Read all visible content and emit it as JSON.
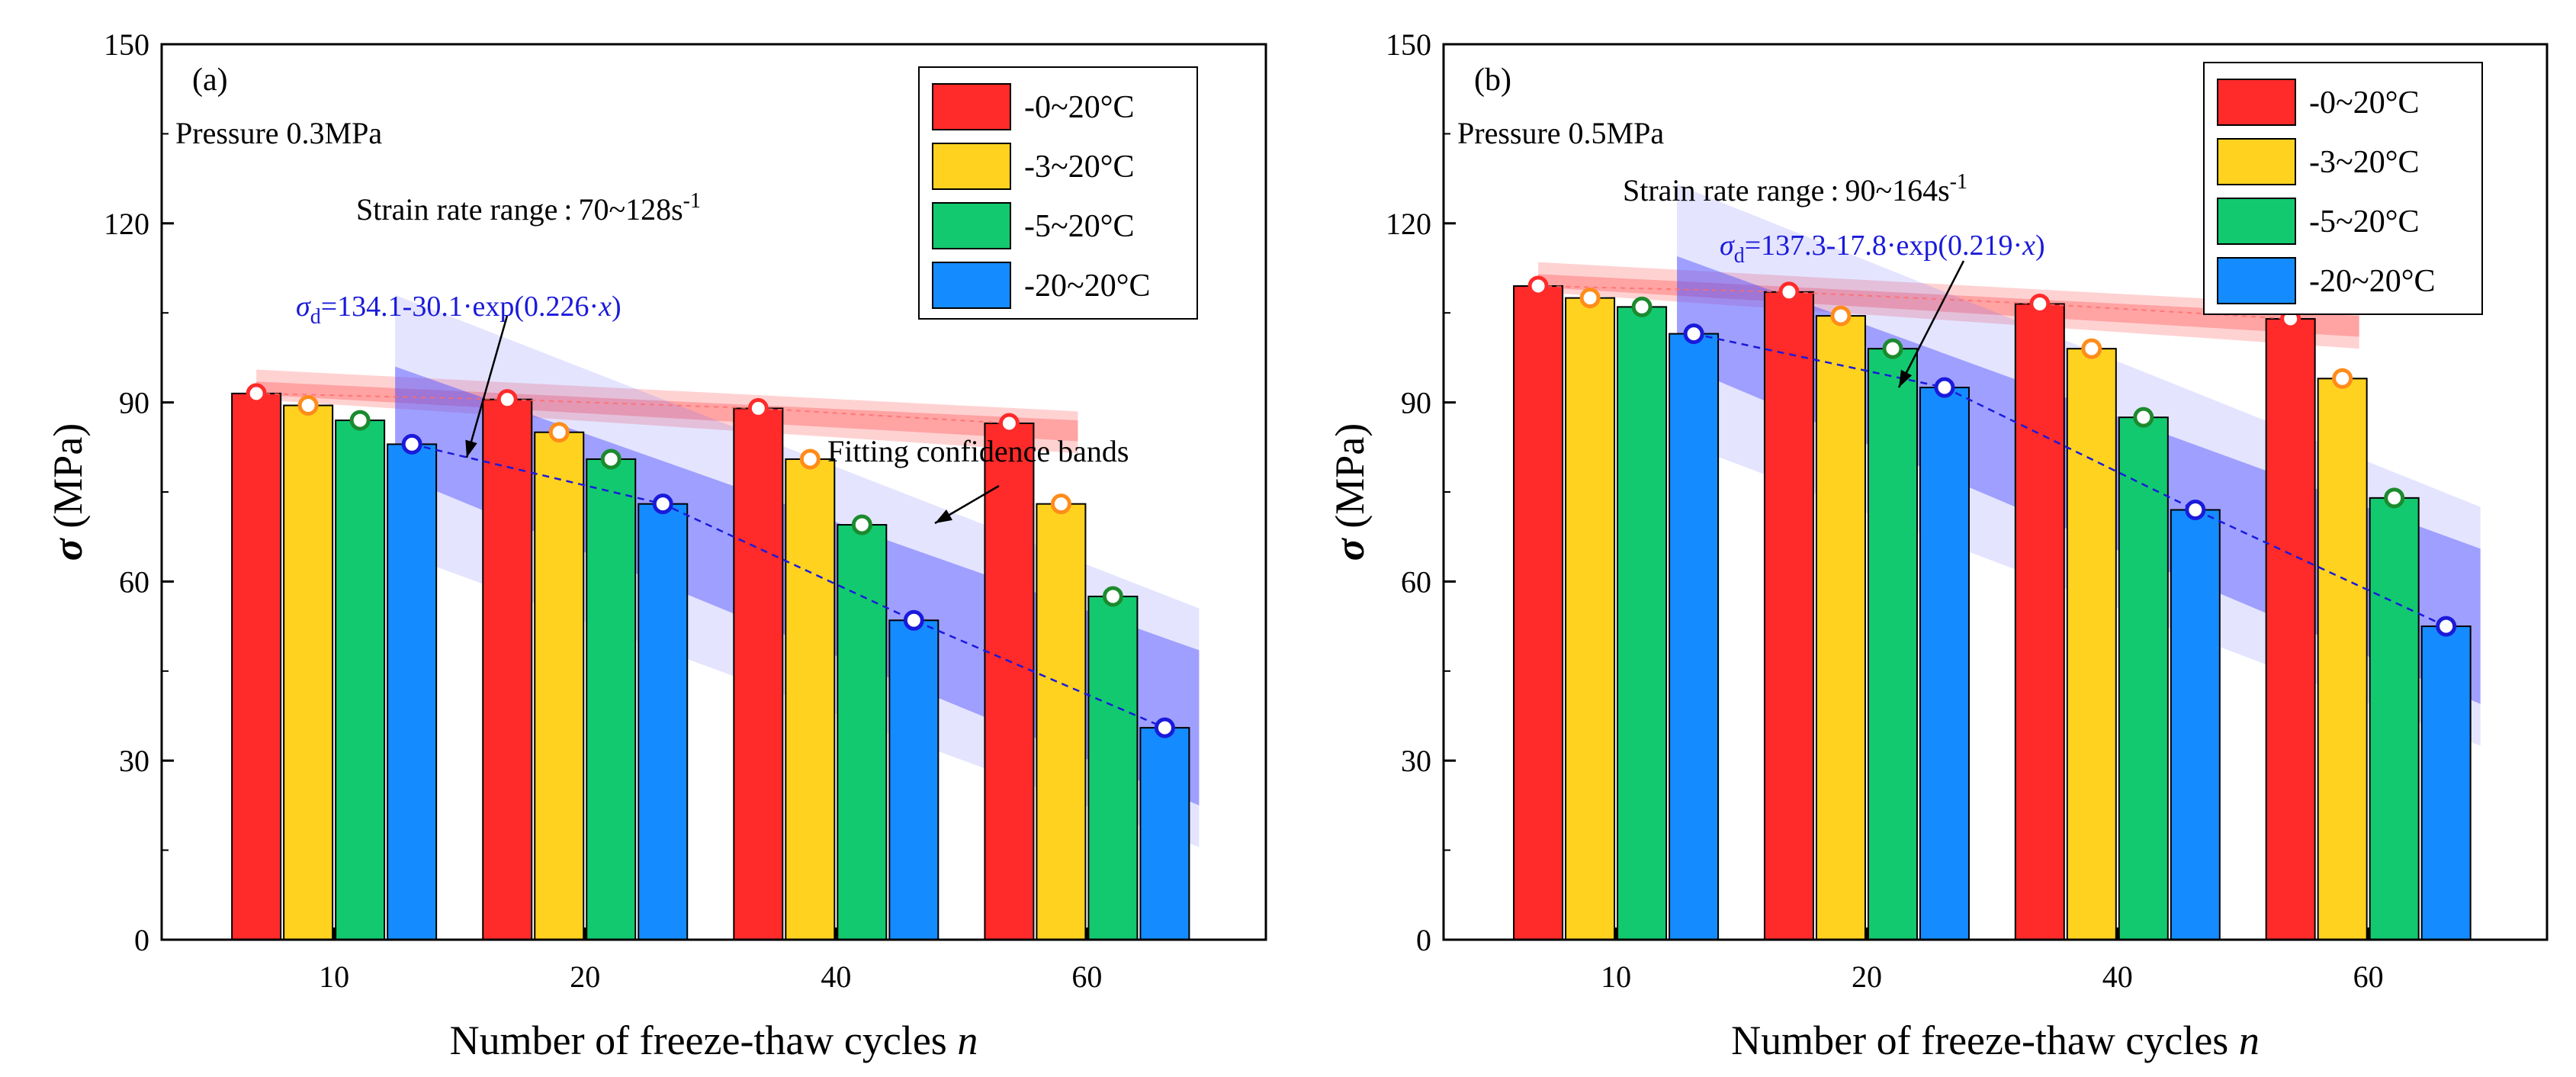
{
  "chart_data": [
    {
      "type": "bar",
      "panel_label": "(a)",
      "pressure_text": "Pressure 0.3MPa",
      "strain_rate_text": "Strain rate range : 70~128s",
      "strain_rate_unit_sup": "-1",
      "ylabel": "σ (MPa)",
      "xlabel": "Number of freeze-thaw cycles n",
      "ylim": [
        0,
        150
      ],
      "yticks": [
        0,
        30,
        60,
        90,
        120,
        150
      ],
      "categories": [
        "10",
        "20",
        "40",
        "60"
      ],
      "series": [
        {
          "name": "-0~20°C",
          "color": "#ff2a2a",
          "marker": "#ff2a2a",
          "values": [
            91.5,
            90.5,
            89,
            86.5
          ]
        },
        {
          "name": "-3~20°C",
          "color": "#ffd21f",
          "marker": "#ff8c1a",
          "values": [
            89.5,
            85,
            80.5,
            73
          ]
        },
        {
          "name": "-5~20°C",
          "color": "#13c96f",
          "marker": "#1c8a2e",
          "values": [
            87,
            80.5,
            69.5,
            57.5
          ]
        },
        {
          "name": "-20~20°C",
          "color": "#148cff",
          "marker": "#1a1adb",
          "values": [
            83,
            73,
            53.5,
            35.5
          ]
        }
      ],
      "fit_equation": "σd=134.1-30.1·exp(0.226·x)",
      "fit_annotation": "Fitting confidence bands",
      "grid": false,
      "legend_position": "top-right"
    },
    {
      "type": "bar",
      "panel_label": "(b)",
      "pressure_text": "Pressure 0.5MPa",
      "strain_rate_text": "Strain rate range : 90~164s",
      "strain_rate_unit_sup": "-1",
      "ylabel": "σ (MPa)",
      "xlabel": "Number of freeze-thaw cycles n",
      "ylim": [
        0,
        150
      ],
      "yticks": [
        0,
        30,
        60,
        90,
        120,
        150
      ],
      "categories": [
        "10",
        "20",
        "40",
        "60"
      ],
      "series": [
        {
          "name": "-0~20°C",
          "color": "#ff2a2a",
          "marker": "#ff2a2a",
          "values": [
            109.5,
            108.5,
            106.5,
            104
          ]
        },
        {
          "name": "-3~20°C",
          "color": "#ffd21f",
          "marker": "#ff8c1a",
          "values": [
            107.5,
            104.5,
            99,
            94
          ]
        },
        {
          "name": "-5~20°C",
          "color": "#13c96f",
          "marker": "#1c8a2e",
          "values": [
            106,
            99,
            87.5,
            74
          ]
        },
        {
          "name": "-20~20°C",
          "color": "#148cff",
          "marker": "#1a1adb",
          "values": [
            101.5,
            92.5,
            72,
            52.5
          ]
        }
      ],
      "fit_equation": "σd=137.3-17.8·exp(0.219·x)",
      "grid": false,
      "legend_position": "top-right"
    }
  ]
}
